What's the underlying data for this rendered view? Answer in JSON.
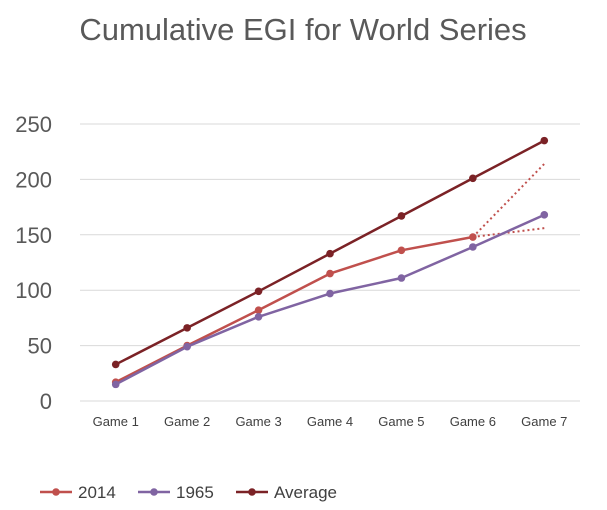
{
  "chart_data": {
    "type": "line",
    "title": "Cumulative EGI for World Series",
    "xlabel": "",
    "ylabel": "",
    "categories": [
      "Game 1",
      "Game 2",
      "Game 3",
      "Game 4",
      "Game 5",
      "Game 6",
      "Game 7"
    ],
    "ylim": [
      0,
      250
    ],
    "yticks": [
      "0",
      "50",
      "100",
      "150",
      "200",
      "250"
    ],
    "grid": true,
    "legend_position": "bottom-left",
    "series": [
      {
        "name": "2014",
        "color": "#c0504d",
        "values": [
          17,
          50,
          82,
          115,
          136,
          148,
          null
        ]
      },
      {
        "name": "1965",
        "color": "#8064a2",
        "values": [
          15,
          49,
          76,
          97,
          111,
          139,
          168
        ]
      },
      {
        "name": "Average",
        "color": "#7b2226",
        "values": [
          33,
          66,
          99,
          133,
          167,
          201,
          235
        ]
      }
    ],
    "projections": [
      {
        "series": "2014",
        "style": "dotted",
        "color": "#c0504d",
        "from": "Game 6",
        "to": "Game 7",
        "from_value": 148,
        "to_value": 214
      },
      {
        "series": "2014",
        "style": "dotted",
        "color": "#c0504d",
        "from": "Game 6",
        "to": "Game 7",
        "from_value": 148,
        "to_value": 156
      }
    ]
  }
}
